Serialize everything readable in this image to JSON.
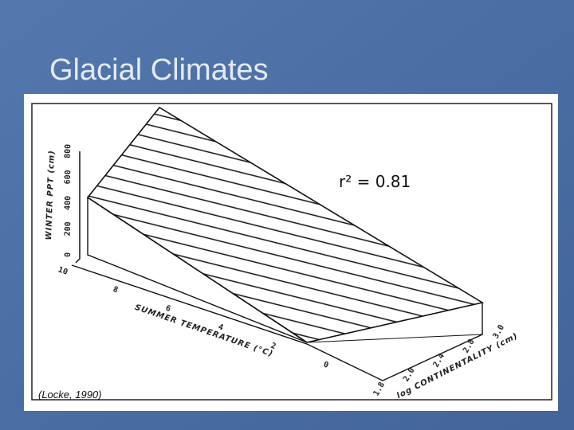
{
  "title": "Glacial Climates",
  "figure": {
    "annotation": "r² = 0.81",
    "y_axis": {
      "label": "WINTER PPT (cm)",
      "ticks": [
        "0",
        "200",
        "400",
        "600",
        "800"
      ]
    },
    "x_axis": {
      "label": "SUMMER TEMPERATURE (°C)",
      "ticks": [
        "10",
        "8",
        "6",
        "4",
        "2",
        "0"
      ]
    },
    "z_axis": {
      "label": "log CONTINENTALITY (cm)",
      "ticks": [
        "1.8",
        "2.0",
        "2.4",
        "2.8",
        "3.0"
      ]
    },
    "source": "(Locke, 1990)"
  }
}
